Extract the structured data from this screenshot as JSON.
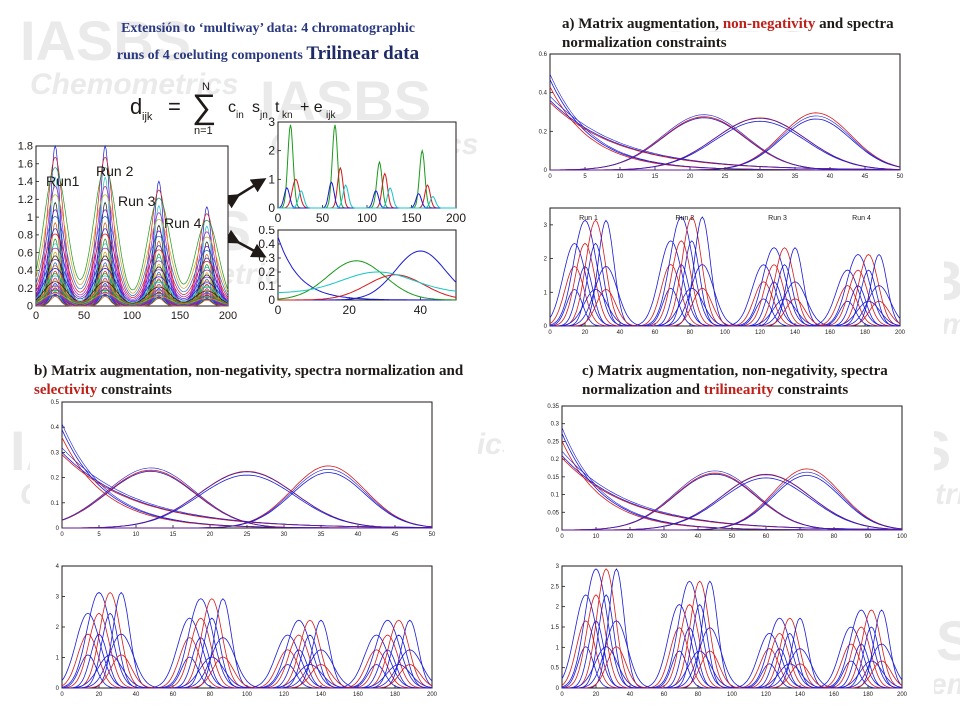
{
  "slide": {
    "title_line1": "Extensión to ‘multiway’ data: 4  chromatographic",
    "title_line2": "runs of 4 coeluting components",
    "title_big": "Trilinear data"
  },
  "watermark": {
    "text1": "IASBS",
    "text2": "Chemometrics"
  },
  "equation": {
    "lhs": "d",
    "lhs_sub": "ijk",
    "eq": "=",
    "sum_top": "N",
    "sum_bot": "n=1",
    "terms": "c",
    "sub1": "in",
    "s": "s",
    "sub2": "jn",
    "t": "t",
    "sub3": "kn",
    "plus": "+ e",
    "sub4": "ijk"
  },
  "captions": {
    "a_prefix": "a) Matrix augmentation, ",
    "a_hl": "non-negativity",
    "a_suffix": " and spectra normalization constraints",
    "b_prefix": "b) Matrix augmentation, non-negativity, spectra normalization and ",
    "b_hl": "selectivity",
    "b_suffix": " constraints",
    "c_prefix": "c) Matrix augmentation, non-negativity, spectra normalization and ",
    "c_hl": "trilinearity",
    "c_suffix": " constraints"
  },
  "run_labels": [
    "Run1",
    "Run 2",
    "Run 3",
    "Run 4"
  ],
  "run_labels_small": [
    "Run 1",
    "Run 2",
    "Run 3",
    "Run 4"
  ],
  "colors": {
    "blue": "#1a1ad6",
    "red": "#d61a1a",
    "green": "#1a9a1a",
    "cyan": "#19c4c4",
    "dark": "#1f1a17",
    "accent": "#c0201a"
  },
  "chart_data": [
    {
      "id": "main-data",
      "type": "line",
      "ylim": [
        0,
        1.8
      ],
      "xlim": [
        0,
        200
      ],
      "yticks": [
        "0",
        "0.2",
        "0.4",
        "0.6",
        "0.8",
        "1",
        "1.2",
        "1.4",
        "1.6",
        "1.8"
      ],
      "xticks": [
        "0",
        "50",
        "100",
        "150",
        "200"
      ],
      "series": [
        {
          "values": [
            [
              0,
              0.05
            ],
            [
              10,
              0.4
            ],
            [
              20,
              1.8
            ],
            [
              30,
              0.5
            ],
            [
              45,
              0.05
            ],
            [
              55,
              0.4
            ],
            [
              65,
              1.68
            ],
            [
              75,
              1.75
            ],
            [
              85,
              0.6
            ],
            [
              100,
              0.1
            ],
            [
              112,
              0.4
            ],
            [
              125,
              1.3
            ],
            [
              135,
              1.4
            ],
            [
              145,
              0.3
            ],
            [
              155,
              0.1
            ],
            [
              165,
              0.5
            ],
            [
              175,
              1.1
            ],
            [
              185,
              0.6
            ],
            [
              200,
              0.05
            ]
          ]
        }
      ]
    },
    {
      "id": "elution-profiles",
      "type": "line",
      "ylim": [
        0,
        3
      ],
      "xlim": [
        0,
        200
      ],
      "yticks": [
        "0",
        "1",
        "2",
        "3"
      ],
      "xticks": [
        "0",
        "50",
        "100",
        "150",
        "200"
      ]
    },
    {
      "id": "spectra",
      "type": "line",
      "ylim": [
        0,
        0.5
      ],
      "xlim": [
        0,
        50
      ],
      "yticks": [
        "0",
        "0.1",
        "0.2",
        "0.3",
        "0.4",
        "0.5"
      ],
      "xticks": [
        "0",
        "20",
        "40"
      ]
    },
    {
      "id": "a-spectra",
      "type": "line",
      "ylim": [
        0,
        0.6
      ],
      "xlim": [
        0,
        50
      ],
      "yticks": [
        "0",
        "0.2",
        "0.4",
        "0.6"
      ],
      "xticks": [
        "0",
        "5",
        "10",
        "15",
        "20",
        "25",
        "30",
        "35",
        "40",
        "45",
        "50"
      ]
    },
    {
      "id": "a-profiles",
      "type": "line",
      "ylim": [
        0,
        3.5
      ],
      "xlim": [
        0,
        200
      ],
      "yticks": [
        "0",
        "1",
        "2",
        "3"
      ],
      "xticks": [
        "0",
        "20",
        "40",
        "60",
        "80",
        "100",
        "120",
        "140",
        "160",
        "180",
        "200"
      ]
    },
    {
      "id": "b-spectra",
      "type": "line",
      "ylim": [
        0,
        0.5
      ],
      "xlim": [
        0,
        50
      ],
      "yticks": [
        "0",
        "0.1",
        "0.2",
        "0.3",
        "0.4",
        "0.5"
      ],
      "xticks": [
        "0",
        "5",
        "10",
        "15",
        "20",
        "25",
        "30",
        "35",
        "40",
        "45",
        "50"
      ]
    },
    {
      "id": "b-profiles",
      "type": "line",
      "ylim": [
        0,
        4
      ],
      "xlim": [
        0,
        200
      ],
      "yticks": [
        "0",
        "1",
        "2",
        "3",
        "4"
      ],
      "xticks": [
        "0",
        "20",
        "40",
        "60",
        "80",
        "100",
        "120",
        "140",
        "160",
        "180",
        "200"
      ]
    },
    {
      "id": "c-spectra",
      "type": "line",
      "ylim": [
        0,
        0.35
      ],
      "xlim": [
        0,
        100
      ],
      "yticks": [
        "0",
        "0.05",
        "0.1",
        "0.15",
        "0.2",
        "0.25",
        "0.3",
        "0.35"
      ],
      "xticks": [
        "0",
        "10",
        "20",
        "30",
        "40",
        "50",
        "60",
        "70",
        "80",
        "90",
        "100"
      ]
    },
    {
      "id": "c-profiles",
      "type": "line",
      "ylim": [
        0,
        3
      ],
      "xlim": [
        0,
        200
      ],
      "yticks": [
        "0",
        "0.5",
        "1",
        "1.5",
        "2",
        "2.5",
        "3"
      ],
      "xticks": [
        "0",
        "20",
        "40",
        "60",
        "80",
        "100",
        "120",
        "140",
        "160",
        "180",
        "200"
      ]
    }
  ]
}
